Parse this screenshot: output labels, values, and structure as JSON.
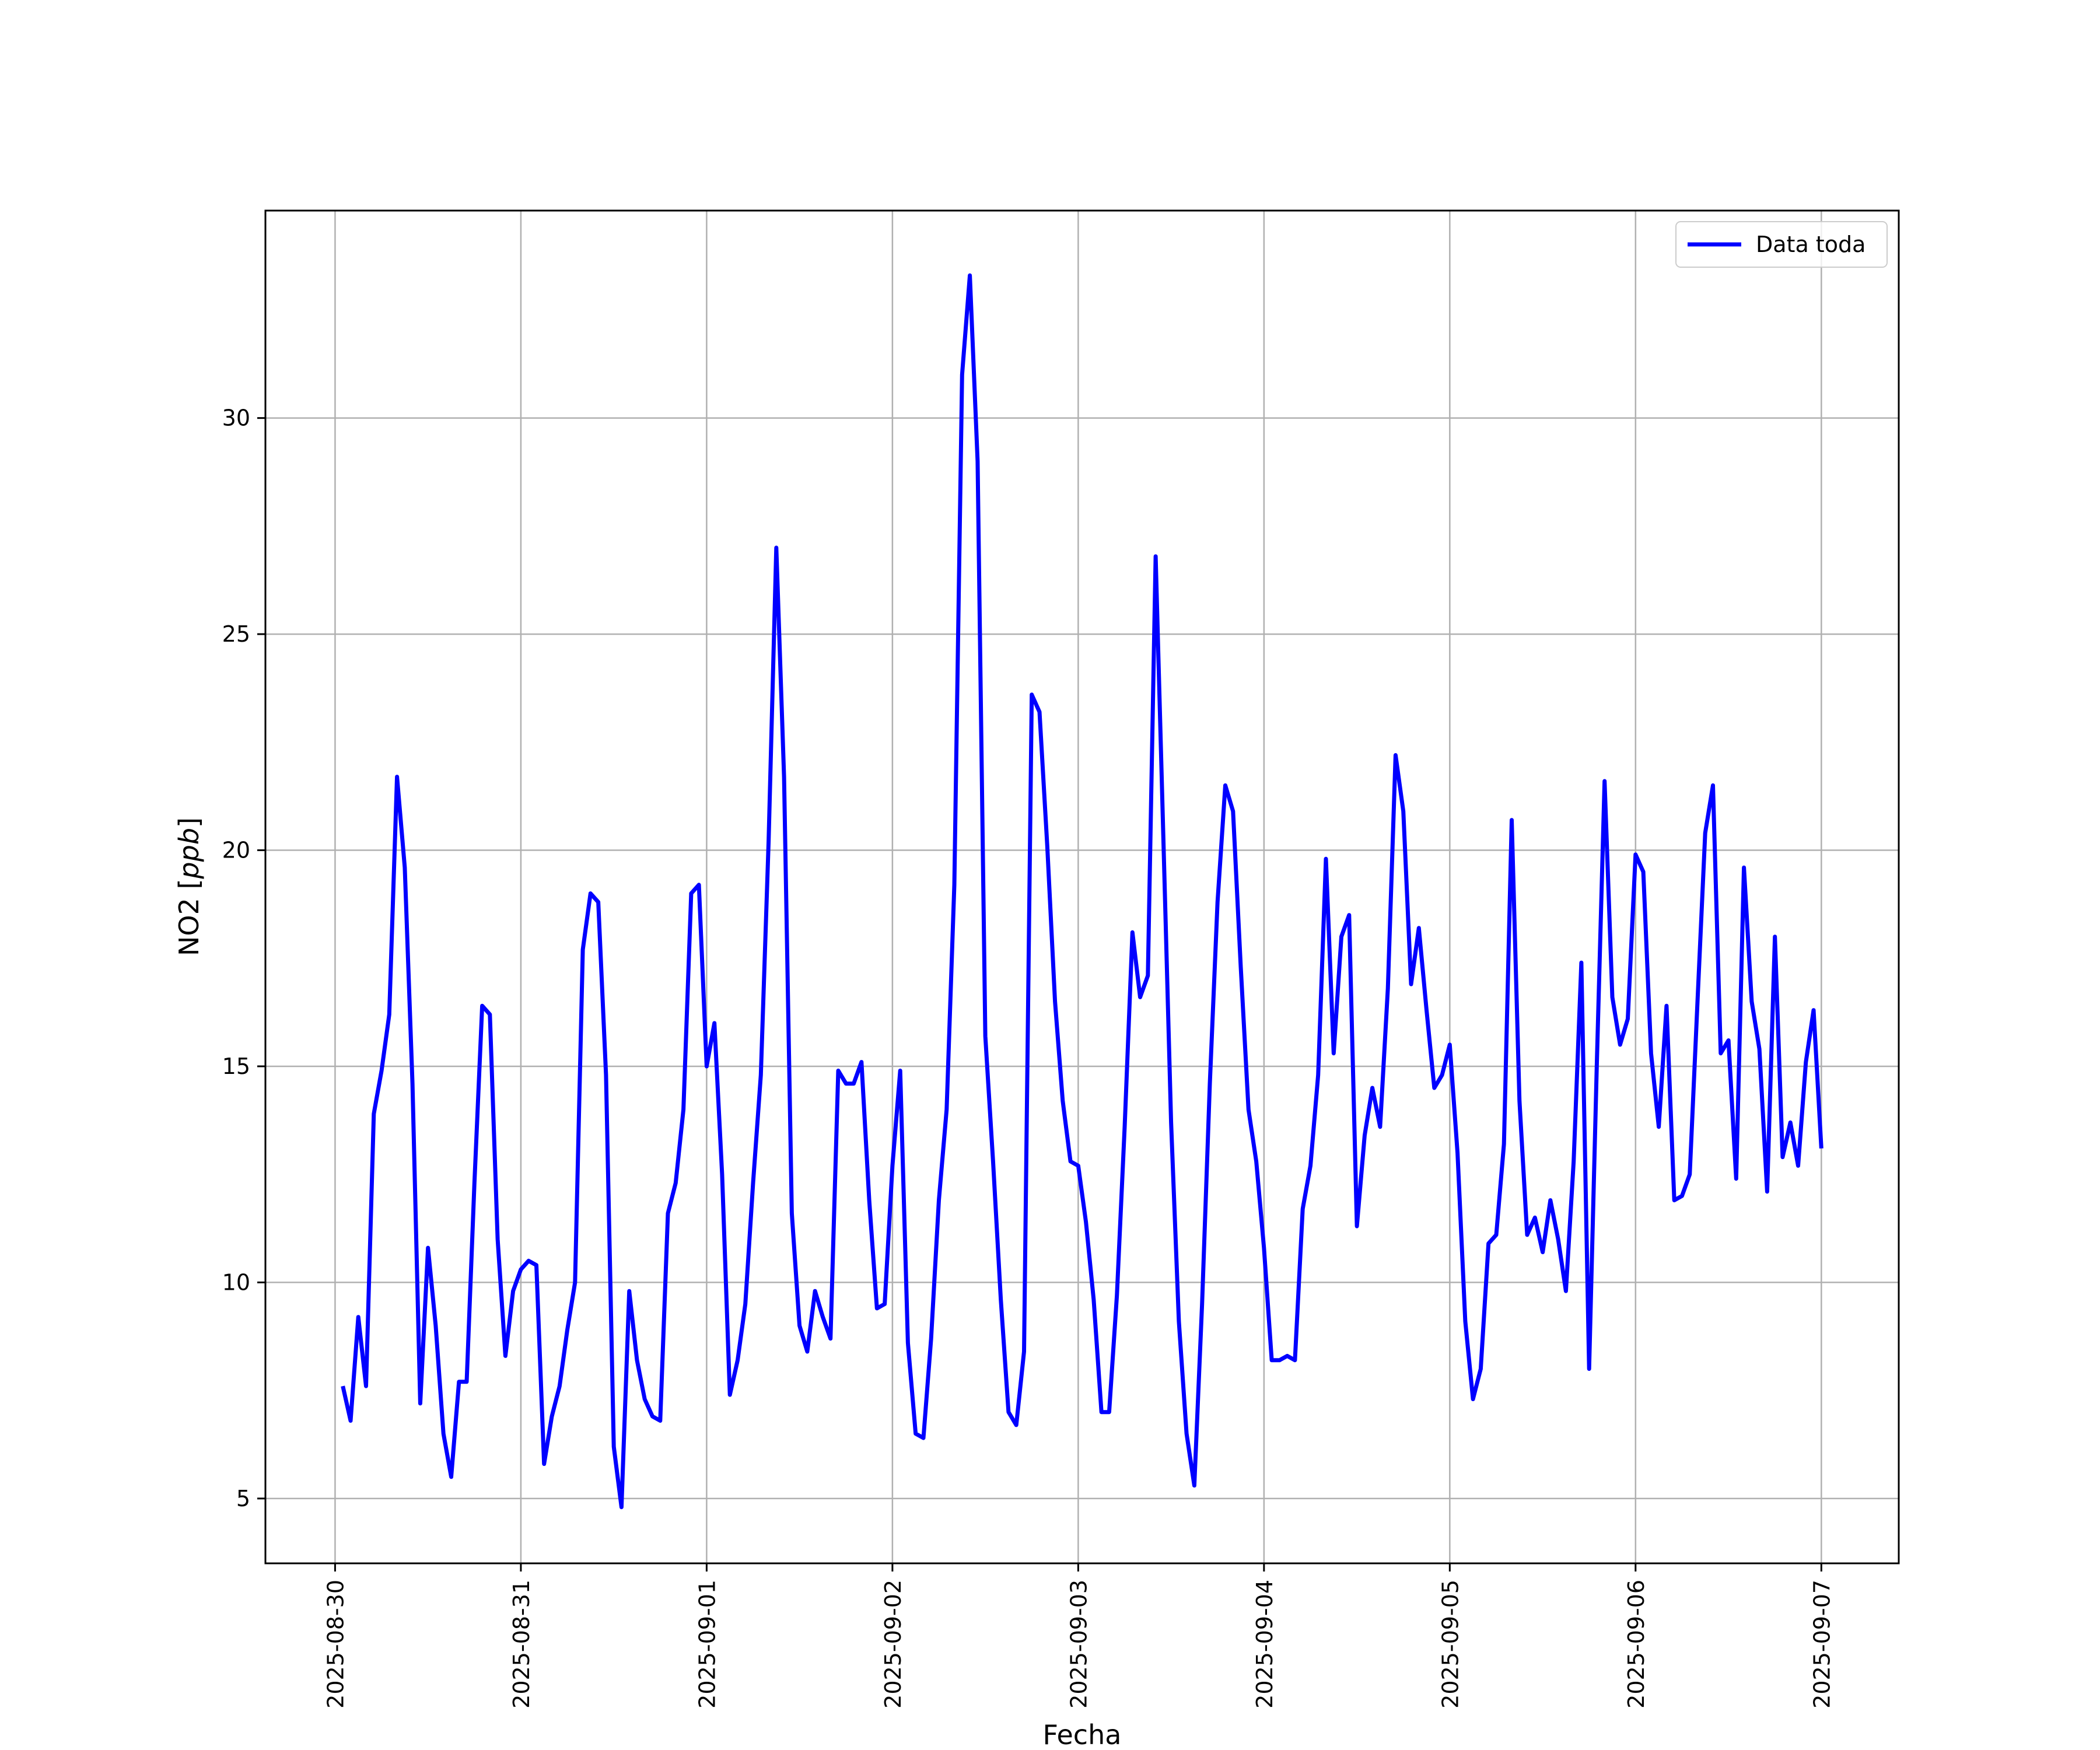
{
  "chart_data": {
    "type": "line",
    "xlabel": "Fecha",
    "ylabel_text": "NO2 [",
    "ylabel_unit": "ppb",
    "ylabel_close": "]",
    "x_ticks": [
      "2025-08-30",
      "2025-08-31",
      "2025-09-01",
      "2025-09-02",
      "2025-09-03",
      "2025-09-04",
      "2025-09-05",
      "2025-09-06",
      "2025-09-07"
    ],
    "y_ticks": [
      5,
      10,
      15,
      20,
      25,
      30
    ],
    "xlim": [
      "2025-08-29T15:00",
      "2025-09-07T10:00"
    ],
    "ylim": [
      3.5,
      34.8
    ],
    "grid": true,
    "legend_position": "top-right",
    "line_color": "#0000ff",
    "series": [
      {
        "name": "Data toda",
        "points": [
          [
            "2025-08-30T01:00",
            7.6
          ],
          [
            "2025-08-30T02:00",
            6.8
          ],
          [
            "2025-08-30T03:00",
            9.2
          ],
          [
            "2025-08-30T04:00",
            7.6
          ],
          [
            "2025-08-30T05:00",
            13.9
          ],
          [
            "2025-08-30T06:00",
            14.9
          ],
          [
            "2025-08-30T07:00",
            16.2
          ],
          [
            "2025-08-30T08:00",
            21.7
          ],
          [
            "2025-08-30T09:00",
            19.6
          ],
          [
            "2025-08-30T10:00",
            14.6
          ],
          [
            "2025-08-30T11:00",
            7.2
          ],
          [
            "2025-08-30T12:00",
            10.8
          ],
          [
            "2025-08-30T13:00",
            9.0
          ],
          [
            "2025-08-30T14:00",
            6.5
          ],
          [
            "2025-08-30T15:00",
            5.5
          ],
          [
            "2025-08-30T16:00",
            7.7
          ],
          [
            "2025-08-30T17:00",
            7.7
          ],
          [
            "2025-08-30T18:00",
            12.3
          ],
          [
            "2025-08-30T19:00",
            16.4
          ],
          [
            "2025-08-30T20:00",
            16.2
          ],
          [
            "2025-08-30T21:00",
            11.0
          ],
          [
            "2025-08-30T22:00",
            8.3
          ],
          [
            "2025-08-30T23:00",
            9.8
          ],
          [
            "2025-08-31T00:00",
            10.3
          ],
          [
            "2025-08-31T01:00",
            10.5
          ],
          [
            "2025-08-31T02:00",
            10.4
          ],
          [
            "2025-08-31T03:00",
            5.8
          ],
          [
            "2025-08-31T04:00",
            6.9
          ],
          [
            "2025-08-31T05:00",
            7.6
          ],
          [
            "2025-08-31T06:00",
            8.9
          ],
          [
            "2025-08-31T07:00",
            10.0
          ],
          [
            "2025-08-31T08:00",
            17.7
          ],
          [
            "2025-08-31T09:00",
            19.0
          ],
          [
            "2025-08-31T10:00",
            18.8
          ],
          [
            "2025-08-31T11:00",
            14.8
          ],
          [
            "2025-08-31T12:00",
            6.2
          ],
          [
            "2025-08-31T13:00",
            4.8
          ],
          [
            "2025-08-31T14:00",
            9.8
          ],
          [
            "2025-08-31T15:00",
            8.2
          ],
          [
            "2025-08-31T16:00",
            7.3
          ],
          [
            "2025-08-31T17:00",
            6.9
          ],
          [
            "2025-08-31T18:00",
            6.8
          ],
          [
            "2025-08-31T19:00",
            11.6
          ],
          [
            "2025-08-31T20:00",
            12.3
          ],
          [
            "2025-08-31T21:00",
            14.0
          ],
          [
            "2025-08-31T22:00",
            19.0
          ],
          [
            "2025-08-31T23:00",
            19.2
          ],
          [
            "2025-09-01T00:00",
            15.0
          ],
          [
            "2025-09-01T01:00",
            16.0
          ],
          [
            "2025-09-01T02:00",
            12.5
          ],
          [
            "2025-09-01T03:00",
            7.4
          ],
          [
            "2025-09-01T04:00",
            8.2
          ],
          [
            "2025-09-01T05:00",
            9.5
          ],
          [
            "2025-09-01T06:00",
            12.3
          ],
          [
            "2025-09-01T07:00",
            14.8
          ],
          [
            "2025-09-01T08:00",
            20.2
          ],
          [
            "2025-09-01T09:00",
            27.0
          ],
          [
            "2025-09-01T10:00",
            21.7
          ],
          [
            "2025-09-01T11:00",
            11.6
          ],
          [
            "2025-09-01T12:00",
            9.0
          ],
          [
            "2025-09-01T13:00",
            8.4
          ],
          [
            "2025-09-01T14:00",
            9.8
          ],
          [
            "2025-09-01T15:00",
            9.2
          ],
          [
            "2025-09-01T16:00",
            8.7
          ],
          [
            "2025-09-01T17:00",
            14.9
          ],
          [
            "2025-09-01T18:00",
            14.6
          ],
          [
            "2025-09-01T19:00",
            14.6
          ],
          [
            "2025-09-01T20:00",
            15.1
          ],
          [
            "2025-09-01T21:00",
            11.9
          ],
          [
            "2025-09-01T22:00",
            9.4
          ],
          [
            "2025-09-01T23:00",
            9.5
          ],
          [
            "2025-09-02T00:00",
            12.7
          ],
          [
            "2025-09-02T01:00",
            14.9
          ],
          [
            "2025-09-02T02:00",
            8.6
          ],
          [
            "2025-09-02T03:00",
            6.5
          ],
          [
            "2025-09-02T04:00",
            6.4
          ],
          [
            "2025-09-02T05:00",
            8.7
          ],
          [
            "2025-09-02T06:00",
            11.9
          ],
          [
            "2025-09-02T07:00",
            14.0
          ],
          [
            "2025-09-02T08:00",
            19.2
          ],
          [
            "2025-09-02T09:00",
            31.0
          ],
          [
            "2025-09-02T10:00",
            33.3
          ],
          [
            "2025-09-02T11:00",
            29.0
          ],
          [
            "2025-09-02T12:00",
            15.7
          ],
          [
            "2025-09-02T13:00",
            12.8
          ],
          [
            "2025-09-02T14:00",
            9.6
          ],
          [
            "2025-09-02T15:00",
            7.0
          ],
          [
            "2025-09-02T16:00",
            6.7
          ],
          [
            "2025-09-02T17:00",
            8.4
          ],
          [
            "2025-09-02T18:00",
            23.6
          ],
          [
            "2025-09-02T19:00",
            23.2
          ],
          [
            "2025-09-02T20:00",
            20.1
          ],
          [
            "2025-09-02T21:00",
            16.5
          ],
          [
            "2025-09-02T22:00",
            14.2
          ],
          [
            "2025-09-02T23:00",
            12.8
          ],
          [
            "2025-09-03T00:00",
            12.7
          ],
          [
            "2025-09-03T01:00",
            11.4
          ],
          [
            "2025-09-03T02:00",
            9.6
          ],
          [
            "2025-09-03T03:00",
            7.0
          ],
          [
            "2025-09-03T04:00",
            7.0
          ],
          [
            "2025-09-03T05:00",
            9.7
          ],
          [
            "2025-09-03T06:00",
            13.6
          ],
          [
            "2025-09-03T07:00",
            18.1
          ],
          [
            "2025-09-03T08:00",
            16.6
          ],
          [
            "2025-09-03T09:00",
            17.1
          ],
          [
            "2025-09-03T10:00",
            26.8
          ],
          [
            "2025-09-03T11:00",
            20.3
          ],
          [
            "2025-09-03T12:00",
            13.7
          ],
          [
            "2025-09-03T13:00",
            9.1
          ],
          [
            "2025-09-03T14:00",
            6.5
          ],
          [
            "2025-09-03T15:00",
            5.3
          ],
          [
            "2025-09-03T16:00",
            9.5
          ],
          [
            "2025-09-03T17:00",
            14.6
          ],
          [
            "2025-09-03T18:00",
            18.8
          ],
          [
            "2025-09-03T19:00",
            21.5
          ],
          [
            "2025-09-03T20:00",
            20.9
          ],
          [
            "2025-09-03T21:00",
            17.3
          ],
          [
            "2025-09-03T22:00",
            14.0
          ],
          [
            "2025-09-03T23:00",
            12.8
          ],
          [
            "2025-09-04T00:00",
            10.8
          ],
          [
            "2025-09-04T01:00",
            8.2
          ],
          [
            "2025-09-04T02:00",
            8.2
          ],
          [
            "2025-09-04T03:00",
            8.3
          ],
          [
            "2025-09-04T04:00",
            8.2
          ],
          [
            "2025-09-04T05:00",
            11.7
          ],
          [
            "2025-09-04T06:00",
            12.7
          ],
          [
            "2025-09-04T07:00",
            14.8
          ],
          [
            "2025-09-04T08:00",
            19.8
          ],
          [
            "2025-09-04T09:00",
            15.3
          ],
          [
            "2025-09-04T10:00",
            18.0
          ],
          [
            "2025-09-04T11:00",
            18.5
          ],
          [
            "2025-09-04T12:00",
            11.3
          ],
          [
            "2025-09-04T13:00",
            13.4
          ],
          [
            "2025-09-04T14:00",
            14.5
          ],
          [
            "2025-09-04T15:00",
            13.6
          ],
          [
            "2025-09-04T16:00",
            16.8
          ],
          [
            "2025-09-04T17:00",
            22.2
          ],
          [
            "2025-09-04T18:00",
            20.9
          ],
          [
            "2025-09-04T19:00",
            16.9
          ],
          [
            "2025-09-04T20:00",
            18.2
          ],
          [
            "2025-09-04T21:00",
            16.3
          ],
          [
            "2025-09-04T22:00",
            14.5
          ],
          [
            "2025-09-04T23:00",
            14.8
          ],
          [
            "2025-09-05T00:00",
            15.5
          ],
          [
            "2025-09-05T01:00",
            13.0
          ],
          [
            "2025-09-05T02:00",
            9.1
          ],
          [
            "2025-09-05T03:00",
            7.3
          ],
          [
            "2025-09-05T04:00",
            8.0
          ],
          [
            "2025-09-05T05:00",
            10.9
          ],
          [
            "2025-09-05T06:00",
            11.1
          ],
          [
            "2025-09-05T07:00",
            13.2
          ],
          [
            "2025-09-05T08:00",
            20.7
          ],
          [
            "2025-09-05T09:00",
            14.2
          ],
          [
            "2025-09-05T10:00",
            11.1
          ],
          [
            "2025-09-05T11:00",
            11.5
          ],
          [
            "2025-09-05T12:00",
            10.7
          ],
          [
            "2025-09-05T13:00",
            11.9
          ],
          [
            "2025-09-05T14:00",
            11.0
          ],
          [
            "2025-09-05T15:00",
            9.8
          ],
          [
            "2025-09-05T16:00",
            12.8
          ],
          [
            "2025-09-05T17:00",
            17.4
          ],
          [
            "2025-09-05T18:00",
            8.0
          ],
          [
            "2025-09-05T19:00",
            15.1
          ],
          [
            "2025-09-05T20:00",
            21.6
          ],
          [
            "2025-09-05T21:00",
            16.6
          ],
          [
            "2025-09-05T22:00",
            15.5
          ],
          [
            "2025-09-05T23:00",
            16.1
          ],
          [
            "2025-09-06T00:00",
            19.9
          ],
          [
            "2025-09-06T01:00",
            19.5
          ],
          [
            "2025-09-06T02:00",
            15.3
          ],
          [
            "2025-09-06T03:00",
            13.6
          ],
          [
            "2025-09-06T04:00",
            16.4
          ],
          [
            "2025-09-06T05:00",
            11.9
          ],
          [
            "2025-09-06T06:00",
            12.0
          ],
          [
            "2025-09-06T07:00",
            12.5
          ],
          [
            "2025-09-06T08:00",
            16.5
          ],
          [
            "2025-09-06T09:00",
            20.4
          ],
          [
            "2025-09-06T10:00",
            21.5
          ],
          [
            "2025-09-06T11:00",
            15.3
          ],
          [
            "2025-09-06T12:00",
            15.6
          ],
          [
            "2025-09-06T13:00",
            12.4
          ],
          [
            "2025-09-06T14:00",
            19.6
          ],
          [
            "2025-09-06T15:00",
            16.5
          ],
          [
            "2025-09-06T16:00",
            15.4
          ],
          [
            "2025-09-06T17:00",
            12.1
          ],
          [
            "2025-09-06T18:00",
            18.0
          ],
          [
            "2025-09-06T19:00",
            12.9
          ],
          [
            "2025-09-06T20:00",
            13.7
          ],
          [
            "2025-09-06T21:00",
            12.7
          ],
          [
            "2025-09-06T22:00",
            15.1
          ],
          [
            "2025-09-06T23:00",
            16.3
          ],
          [
            "2025-09-07T00:00",
            13.1
          ]
        ]
      }
    ]
  }
}
